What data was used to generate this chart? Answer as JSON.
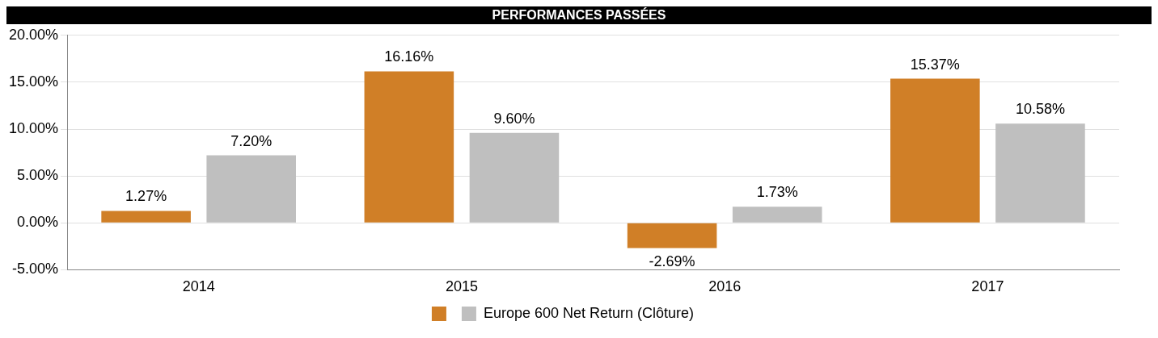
{
  "chart_data": {
    "type": "bar",
    "title": "PERFORMANCES PASSÉES",
    "categories": [
      "2014",
      "2015",
      "2016",
      "2017"
    ],
    "series": [
      {
        "color": "#d07f27",
        "values": [
          1.27,
          16.16,
          -2.69,
          15.37
        ],
        "value_labels": [
          "1.27%",
          "16.16%",
          "-2.69%",
          "15.37%"
        ]
      },
      {
        "name": "Europe 600 Net Return (Clôture)",
        "color": "#bfbfbf",
        "values": [
          7.2,
          9.6,
          1.73,
          10.58
        ],
        "value_labels": [
          "7.20%",
          "9.60%",
          "1.73%",
          "10.58%"
        ]
      }
    ],
    "ylim": [
      -5,
      20
    ],
    "yticks": [
      {
        "value": -5,
        "label": "-5.00%"
      },
      {
        "value": 0,
        "label": "0.00%"
      },
      {
        "value": 5,
        "label": "5.00%"
      },
      {
        "value": 10,
        "label": "10.00%"
      },
      {
        "value": 15,
        "label": "15.00%"
      },
      {
        "value": 20,
        "label": "20.00%"
      }
    ],
    "grid": "y",
    "legend": "bottom"
  }
}
